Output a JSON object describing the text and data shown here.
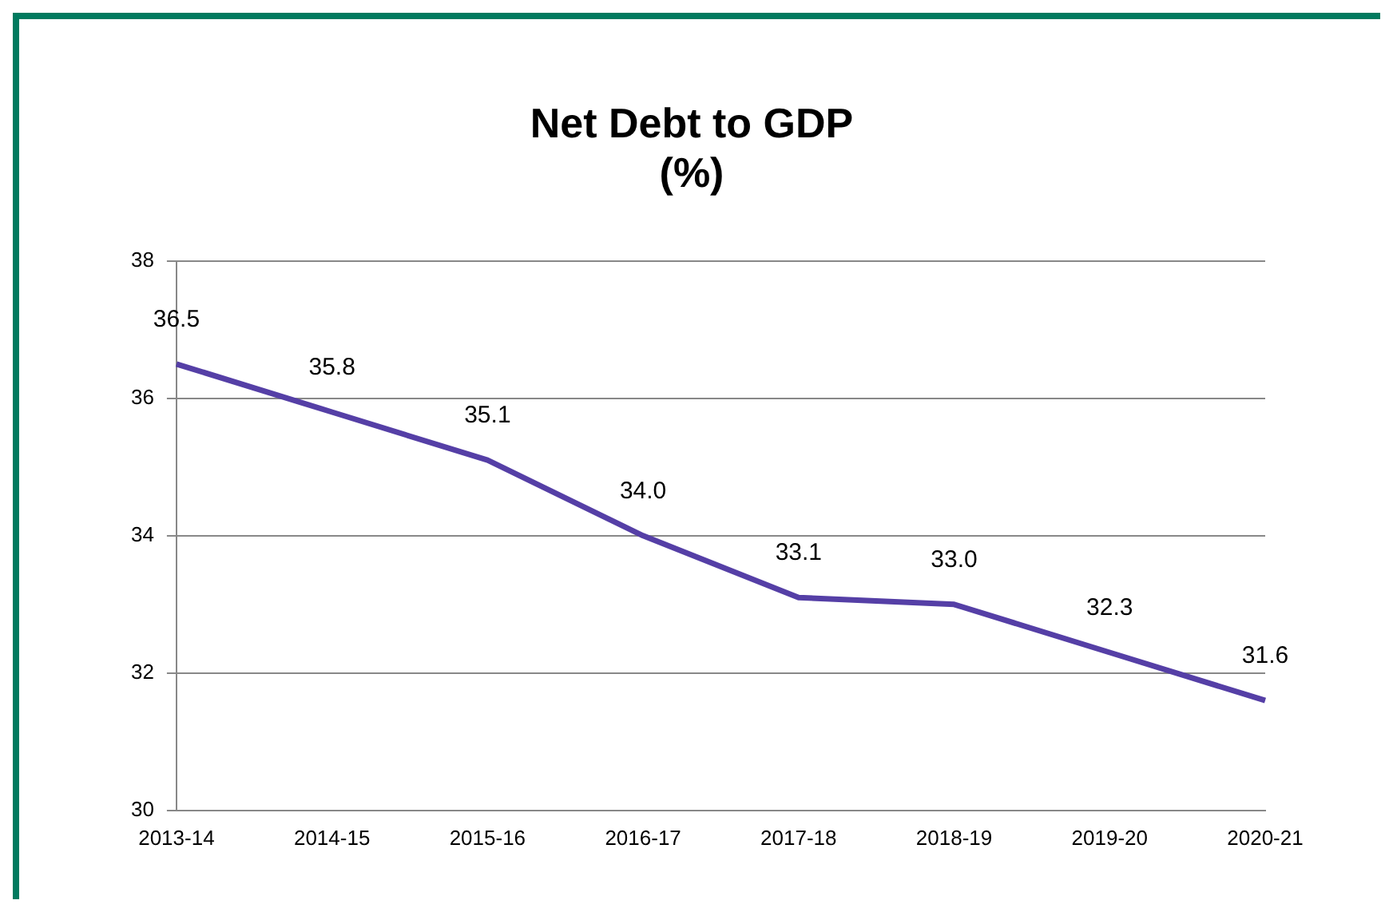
{
  "chart_data": {
    "type": "line",
    "title": [
      "Net Debt to GDP",
      "(%)"
    ],
    "categories": [
      "2013-14",
      "2014-15",
      "2015-16",
      "2016-17",
      "2017-18",
      "2018-19",
      "2019-20",
      "2020-21"
    ],
    "series": [
      {
        "color": "#553fa6",
        "values": [
          36.5,
          35.8,
          35.1,
          34.0,
          33.1,
          33.0,
          32.3,
          31.6
        ],
        "value_labels": [
          "36.5",
          "35.8",
          "35.1",
          "34.0",
          "33.1",
          "33.0",
          "32.3",
          "31.6"
        ]
      }
    ],
    "ylim": [
      30,
      38
    ],
    "yticks": [
      30,
      32,
      34,
      36,
      38
    ],
    "grid": "y",
    "legend": false,
    "marker": "none",
    "line_style": "solid"
  }
}
